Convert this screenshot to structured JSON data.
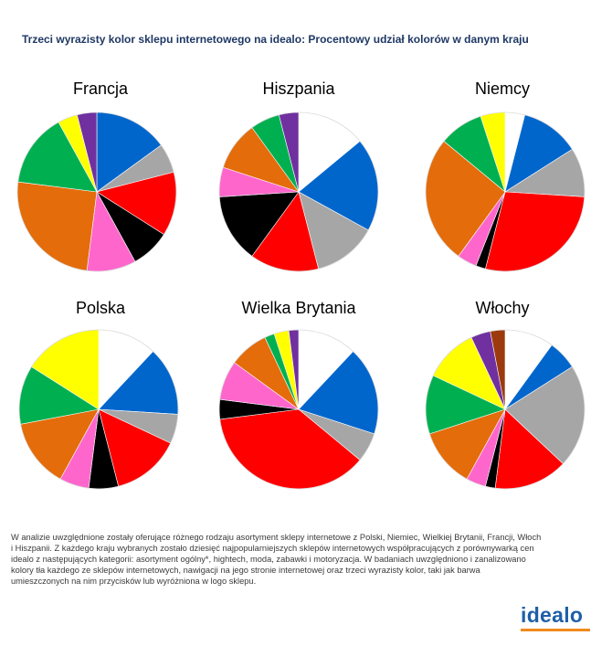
{
  "title": "Trzeci wyrazisty kolor sklepu internetowego na idealo: Procentowy udział kolorów w danym kraju",
  "footnote": "W analizie uwzględnione zostały oferujące różnego rodzaju asortyment sklepy internetowe z Polski, Niemiec, Wielkiej Brytanii, Francji, Włoch\ni Hiszpanii.  Z każdego kraju wybranych zostało dziesięć najpopularniejszych sklepów internetowych współpracujących z porównywarką cen\nidealo z następujących kategorii: asortyment ogólny*, hightech, moda, zabawki i motoryzacja.  W badaniach uwzględniono i zanalizowano\nkolory tła każdego ze sklepów internetowych, nawigacji na jego stronie internetowej oraz trzeci wyrazisty kolor, taki jak barwa\numieszczonych na nim przycisków lub wyróżniona w logo sklepu.",
  "logo_text": "idealo",
  "chart_data": [
    {
      "type": "pie",
      "title": "Francja",
      "start_angle_deg": 0,
      "slices": [
        {
          "value": 15,
          "color": "#0066cc"
        },
        {
          "value": 6,
          "color": "#a6a6a6"
        },
        {
          "value": 13,
          "color": "#ff0000"
        },
        {
          "value": 8,
          "color": "#000000"
        },
        {
          "value": 10,
          "color": "#ff66cc"
        },
        {
          "value": 25,
          "color": "#e46c0a"
        },
        {
          "value": 15,
          "color": "#00b050"
        },
        {
          "value": 4,
          "color": "#ffff00"
        },
        {
          "value": 4,
          "color": "#7030a0"
        }
      ]
    },
    {
      "type": "pie",
      "title": "Hiszpania",
      "start_angle_deg": 0,
      "slices": [
        {
          "value": 14,
          "color": "#ffffff"
        },
        {
          "value": 19,
          "color": "#0066cc"
        },
        {
          "value": 13,
          "color": "#a6a6a6"
        },
        {
          "value": 14,
          "color": "#ff0000"
        },
        {
          "value": 14,
          "color": "#000000"
        },
        {
          "value": 6,
          "color": "#ff66cc"
        },
        {
          "value": 10,
          "color": "#e46c0a"
        },
        {
          "value": 6,
          "color": "#00b050"
        },
        {
          "value": 4,
          "color": "#7030a0"
        }
      ]
    },
    {
      "type": "pie",
      "title": "Niemcy",
      "start_angle_deg": 0,
      "slices": [
        {
          "value": 4,
          "color": "#ffffff"
        },
        {
          "value": 12,
          "color": "#0066cc"
        },
        {
          "value": 10,
          "color": "#a6a6a6"
        },
        {
          "value": 28,
          "color": "#ff0000"
        },
        {
          "value": 2,
          "color": "#000000"
        },
        {
          "value": 4,
          "color": "#ff66cc"
        },
        {
          "value": 26,
          "color": "#e46c0a"
        },
        {
          "value": 9,
          "color": "#00b050"
        },
        {
          "value": 5,
          "color": "#ffff00"
        }
      ]
    },
    {
      "type": "pie",
      "title": "Polska",
      "start_angle_deg": 0,
      "slices": [
        {
          "value": 12,
          "color": "#ffffff"
        },
        {
          "value": 14,
          "color": "#0066cc"
        },
        {
          "value": 6,
          "color": "#a6a6a6"
        },
        {
          "value": 14,
          "color": "#ff0000"
        },
        {
          "value": 6,
          "color": "#000000"
        },
        {
          "value": 6,
          "color": "#ff66cc"
        },
        {
          "value": 14,
          "color": "#e46c0a"
        },
        {
          "value": 12,
          "color": "#00b050"
        },
        {
          "value": 16,
          "color": "#ffff00"
        }
      ]
    },
    {
      "type": "pie",
      "title": "Wielka Brytania",
      "start_angle_deg": 0,
      "slices": [
        {
          "value": 12,
          "color": "#ffffff"
        },
        {
          "value": 18,
          "color": "#0066cc"
        },
        {
          "value": 6,
          "color": "#a6a6a6"
        },
        {
          "value": 37,
          "color": "#ff0000"
        },
        {
          "value": 4,
          "color": "#000000"
        },
        {
          "value": 8,
          "color": "#ff66cc"
        },
        {
          "value": 8,
          "color": "#e46c0a"
        },
        {
          "value": 2,
          "color": "#00b050"
        },
        {
          "value": 3,
          "color": "#ffff00"
        },
        {
          "value": 2,
          "color": "#7030a0"
        }
      ]
    },
    {
      "type": "pie",
      "title": "Włochy",
      "start_angle_deg": 0,
      "slices": [
        {
          "value": 10,
          "color": "#ffffff"
        },
        {
          "value": 6,
          "color": "#0066cc"
        },
        {
          "value": 21,
          "color": "#a6a6a6"
        },
        {
          "value": 15,
          "color": "#ff0000"
        },
        {
          "value": 2,
          "color": "#000000"
        },
        {
          "value": 4,
          "color": "#ff66cc"
        },
        {
          "value": 12,
          "color": "#e46c0a"
        },
        {
          "value": 12,
          "color": "#00b050"
        },
        {
          "value": 11,
          "color": "#ffff00"
        },
        {
          "value": 4,
          "color": "#7030a0"
        },
        {
          "value": 3,
          "color": "#9c3a0e"
        }
      ]
    }
  ]
}
